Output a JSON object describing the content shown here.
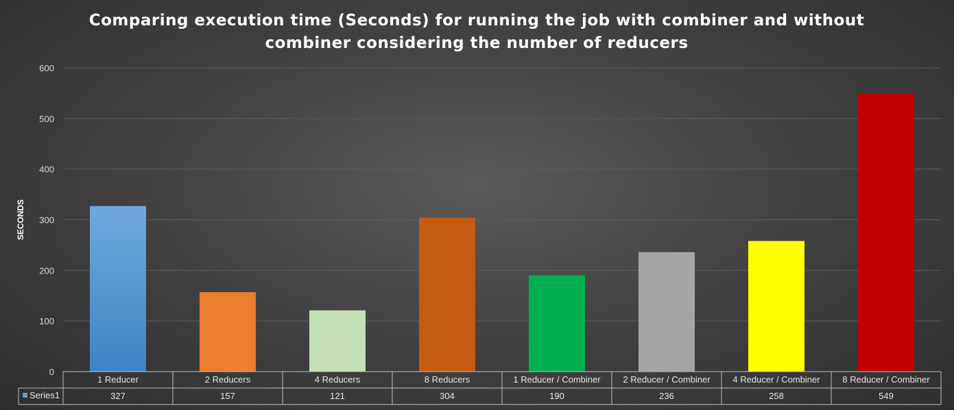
{
  "chart_data": {
    "type": "bar",
    "title": "Comparing execution time (Seconds) for running the job with combiner and without combiner considering the number of reducers",
    "ylabel": "SECONDS",
    "ylim": [
      0,
      600
    ],
    "yticks": [
      0,
      100,
      200,
      300,
      400,
      500,
      600
    ],
    "categories": [
      "1 Reducer",
      "2 Reducers",
      "4 Reducers",
      "8 Reducers",
      "1 Reducer / Combiner",
      "2 Reducer / Combiner",
      "4 Reducer / Combiner",
      "8 Reducer / Combiner"
    ],
    "series": [
      {
        "name": "Series1",
        "values": [
          327,
          157,
          121,
          304,
          190,
          236,
          258,
          549
        ],
        "value_labels": [
          "327",
          "157",
          "121",
          "304",
          "190",
          "236",
          "258",
          "549"
        ],
        "colors": [
          "#5b9bd5",
          "#ed7d31",
          "#c5e0b4",
          "#c55a11",
          "#00b050",
          "#a5a5a5",
          "#ffff00",
          "#c00000"
        ]
      }
    ],
    "legend_key_color": "#5b9bd5",
    "grid": true,
    "data_table": true
  }
}
